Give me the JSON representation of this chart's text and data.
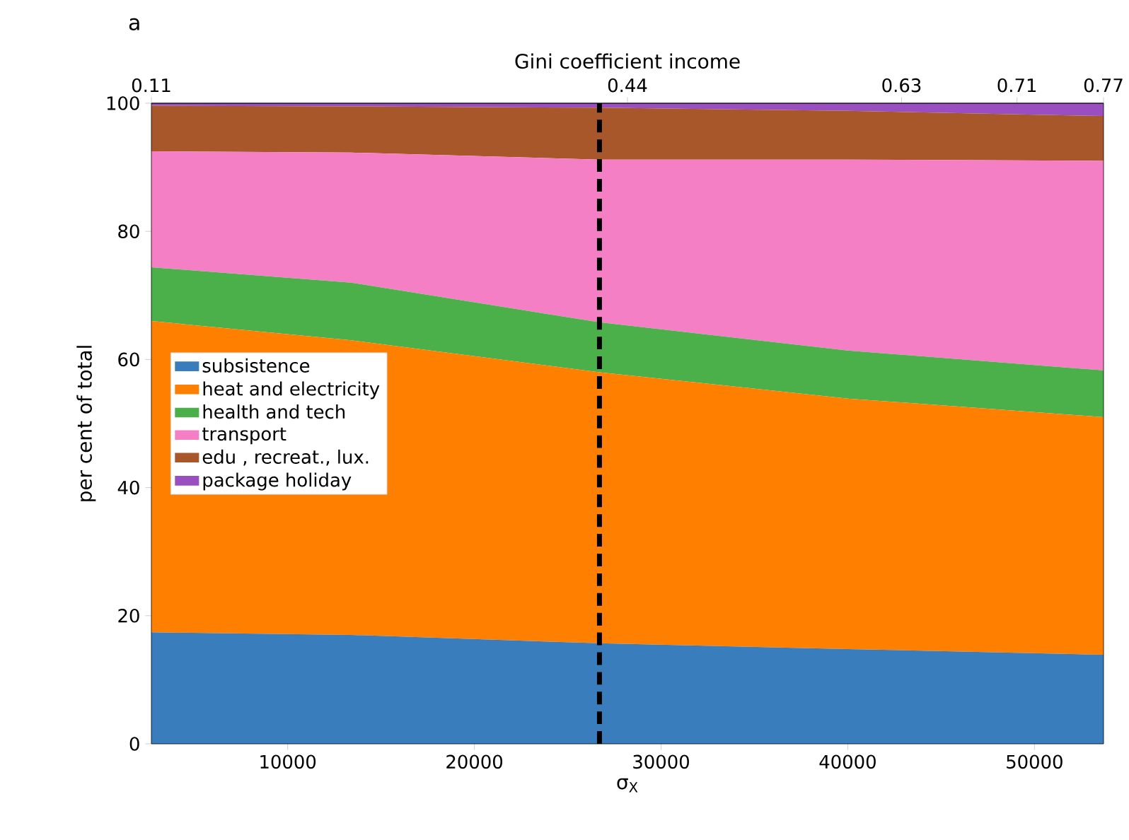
{
  "chart_data": {
    "type": "area",
    "stacked": true,
    "title": "a",
    "xlabel": "σ$_{X}$",
    "ylabel": "per cent of total",
    "x2label": "Gini coefficient income",
    "x": [
      2700,
      13400,
      26700,
      40000,
      53700
    ],
    "series": [
      {
        "name": "subsistence",
        "color": "#3a7dbd",
        "values": [
          17.4,
          17.0,
          15.7,
          14.8,
          13.9
        ]
      },
      {
        "name": "heat and electricity",
        "color": "#ff7f00",
        "values": [
          48.6,
          46.0,
          42.3,
          39.1,
          37.1
        ]
      },
      {
        "name": "health and tech",
        "color": "#4cb04a",
        "values": [
          8.4,
          9.0,
          7.8,
          7.5,
          7.3
        ]
      },
      {
        "name": "transport",
        "color": "#f57fc4",
        "values": [
          18.1,
          20.3,
          25.4,
          29.8,
          32.7
        ]
      },
      {
        "name": "edu , recreat., lux.",
        "color": "#a8572b",
        "values": [
          7.1,
          7.2,
          8.1,
          7.6,
          7.0
        ]
      },
      {
        "name": "package holiday",
        "color": "#9a4fc0",
        "values": [
          0.4,
          0.5,
          0.7,
          1.2,
          2.0
        ]
      }
    ],
    "xlim": [
      2700,
      53700
    ],
    "ylim": [
      0,
      100
    ],
    "xticks": [
      10000,
      20000,
      30000,
      40000,
      50000
    ],
    "yticks": [
      0,
      20,
      40,
      60,
      80,
      100
    ],
    "x2lim": [
      0.11,
      0.77
    ],
    "x2ticks": [
      0.11,
      0.44,
      0.63,
      0.71,
      0.77
    ],
    "ref_lines": [
      {
        "axis": "x",
        "value": 26700,
        "color": "#000000",
        "line_style": "dashed"
      }
    ],
    "legend": "left",
    "grid": false
  }
}
